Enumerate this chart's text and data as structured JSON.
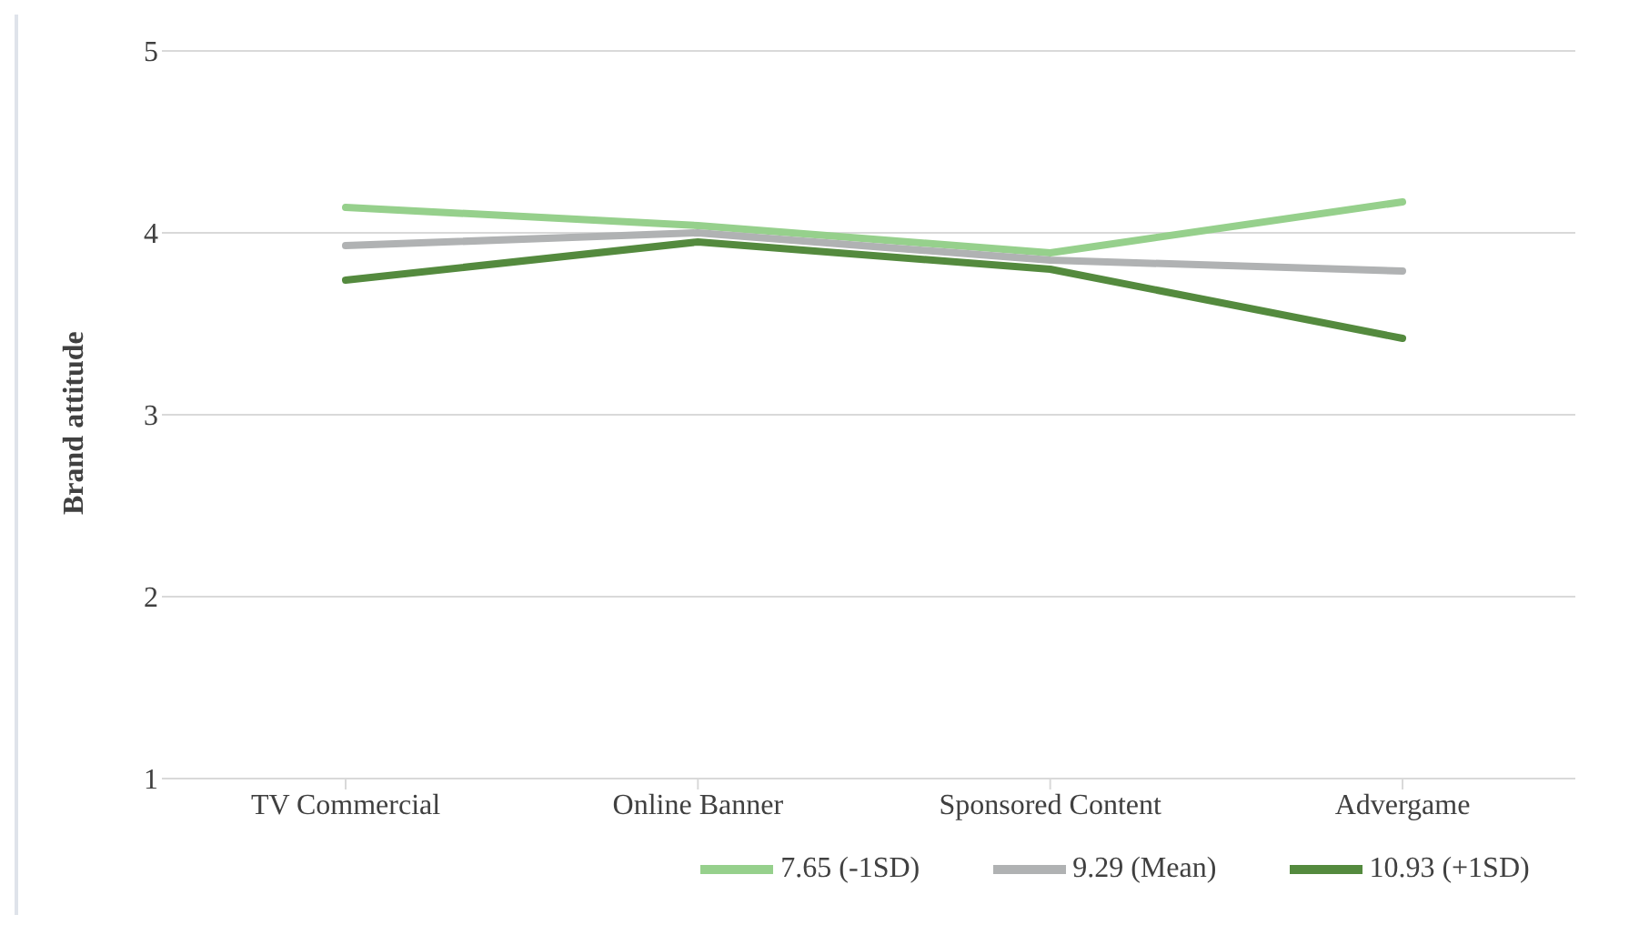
{
  "chart_data": {
    "type": "line",
    "ylabel": "Brand attitude",
    "categories": [
      "TV Commercial",
      "Online Banner",
      "Sponsored Content",
      "Advergame"
    ],
    "series": [
      {
        "name": "7.65 (-1SD)",
        "color": "#96d08c",
        "values": [
          4.14,
          4.04,
          3.89,
          4.17
        ]
      },
      {
        "name": "9.29 (Mean)",
        "color": "#b0b2b3",
        "values": [
          3.93,
          4.0,
          3.85,
          3.79
        ]
      },
      {
        "name": "10.93 (+1SD)",
        "color": "#548a3e",
        "values": [
          3.74,
          3.95,
          3.8,
          3.42
        ]
      }
    ],
    "ylim": [
      1,
      5
    ],
    "yticks": [
      1,
      2,
      3,
      4,
      5
    ],
    "grid": "y",
    "legend": "bottom",
    "marker": "none",
    "line_style": "solid"
  }
}
